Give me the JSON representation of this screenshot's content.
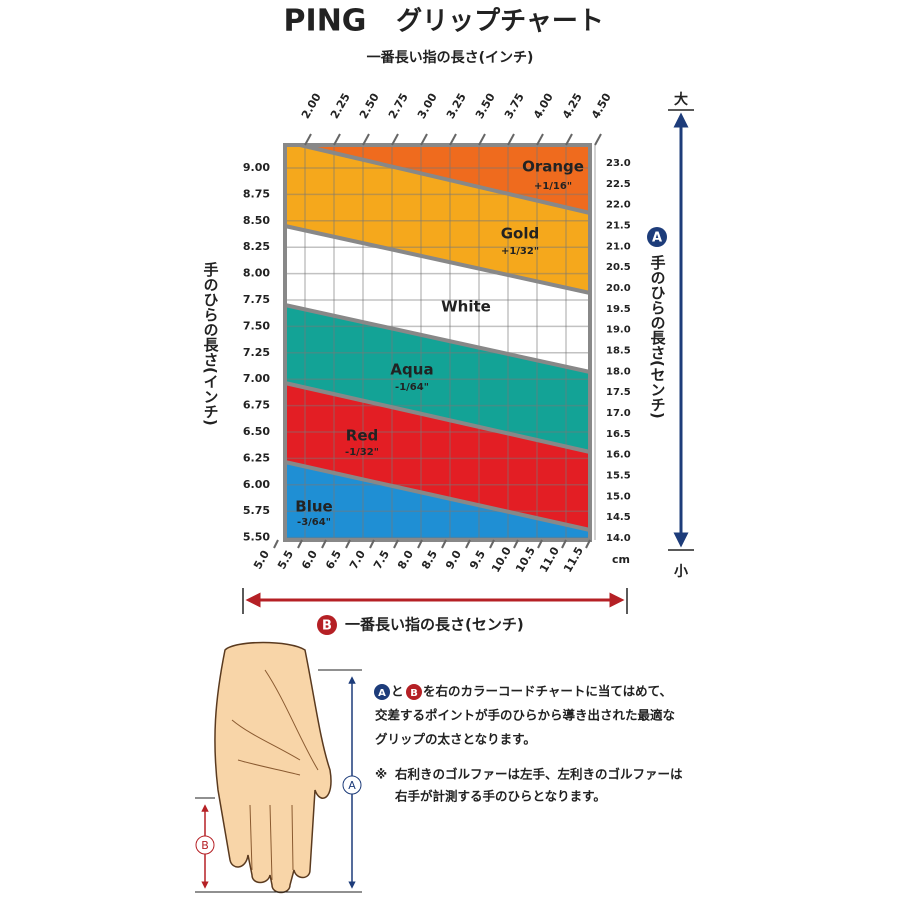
{
  "header": {
    "brand": "PING",
    "title": "グリップチャート"
  },
  "top_axis": {
    "label": "一番長い指の長さ(インチ)",
    "ticks": [
      "2.00",
      "2.25",
      "2.50",
      "2.75",
      "3.00",
      "3.25",
      "3.50",
      "3.75",
      "4.00",
      "4.25",
      "4.50"
    ]
  },
  "left_axis": {
    "label": "手のひらの長さ(インチ)",
    "ticks": [
      "9.00",
      "8.75",
      "8.50",
      "8.25",
      "8.00",
      "7.75",
      "7.50",
      "7.25",
      "7.00",
      "6.75",
      "6.50",
      "6.25",
      "6.00",
      "5.75",
      "5.50"
    ]
  },
  "right_axis": {
    "ticks": [
      "23.0",
      "22.5",
      "22.0",
      "21.5",
      "21.0",
      "20.5",
      "20.0",
      "19.5",
      "19.0",
      "18.5",
      "18.0",
      "17.5",
      "17.0",
      "16.5",
      "16.0",
      "15.5",
      "15.0",
      "14.5",
      "14.0"
    ],
    "badge": "A",
    "label": "手のひらの長さ(センチ)",
    "big": "大",
    "small": "小"
  },
  "bottom_axis": {
    "ticks": [
      "5.0",
      "5.5",
      "6.0",
      "6.5",
      "7.0",
      "7.5",
      "8.0",
      "8.5",
      "9.0",
      "9.5",
      "10.0",
      "10.5",
      "11.0",
      "11.5"
    ],
    "unit": "cm",
    "badge": "B",
    "label": "一番長い指の長さ(センチ)"
  },
  "bands": [
    {
      "name": "Orange",
      "size": "+1/16\""
    },
    {
      "name": "Gold",
      "size": "+1/32\""
    },
    {
      "name": "White"
    },
    {
      "name": "Aqua",
      "size": "-1/64\""
    },
    {
      "name": "Red",
      "size": "-1/32\""
    },
    {
      "name": "Blue",
      "size": "-3/64\""
    }
  ],
  "instructions": {
    "a": "A",
    "join": "と",
    "b": "B",
    "line1": "を右のカラーコードチャートに当てはめて、",
    "line2": "交差するポイントが手のひらから導き出された最適な",
    "line3": "グリップの太さとなります。"
  },
  "note": {
    "mark": "※",
    "line1": "右利きのゴルファーは左手、左利きのゴルファーは",
    "line2": "右手が計測する手のひらとなります。"
  },
  "hand": {
    "a": "A",
    "b": "B"
  }
}
